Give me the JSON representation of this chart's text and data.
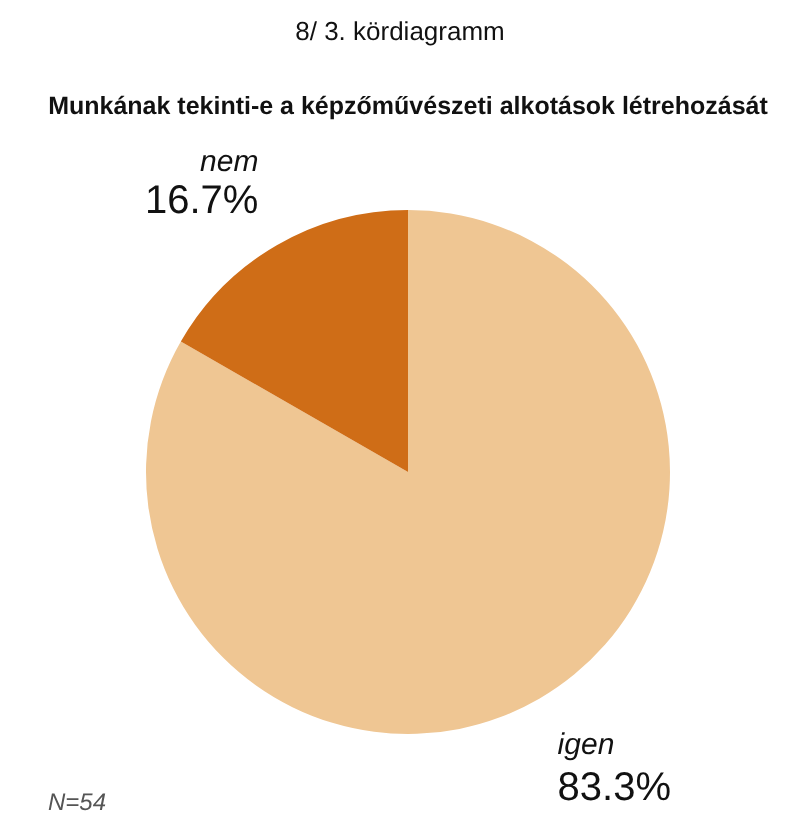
{
  "chart_data": {
    "type": "pie",
    "title": "8/ 3. kördiagramm",
    "subtitle": "Munkának tekinti-e a képzőművészeti alkotások létrehozását",
    "categories": [
      "igen",
      "nem"
    ],
    "values": [
      83.3,
      16.7
    ],
    "colors": [
      "#efc693",
      "#cf6d17"
    ],
    "value_labels": [
      "83.3%",
      "16.7%"
    ],
    "annotations": [
      "N=54"
    ],
    "legend": false
  }
}
